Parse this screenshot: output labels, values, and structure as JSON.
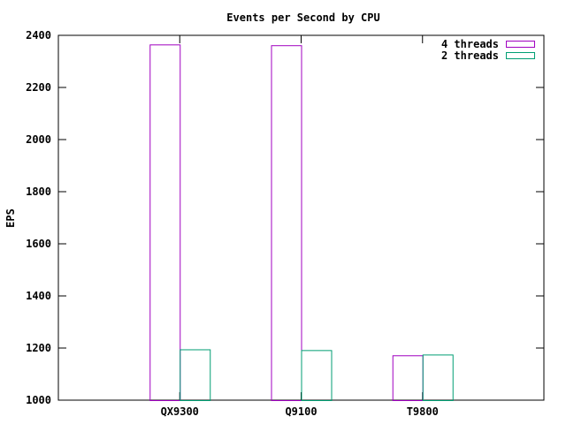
{
  "chart_data": {
    "type": "bar",
    "title": "Events per Second by CPU",
    "xlabel": "",
    "ylabel": "EPS",
    "categories": [
      "QX9300",
      "Q9100",
      "T9800"
    ],
    "series": [
      {
        "name": "4 threads",
        "values": [
          2365,
          2362,
          1172
        ],
        "color": "#a000c0"
      },
      {
        "name": "2 threads",
        "values": [
          1195,
          1192,
          1175
        ],
        "color": "#009e73"
      }
    ],
    "ylim": [
      1000,
      2400
    ],
    "yticks": [
      1000,
      1200,
      1400,
      1600,
      1800,
      2000,
      2200,
      2400
    ],
    "ytick_labels": [
      "1000",
      "1200",
      "1400",
      "1600",
      "1800",
      "2000",
      "2200",
      "2400"
    ],
    "legend_position": "top-right",
    "grid": false
  }
}
